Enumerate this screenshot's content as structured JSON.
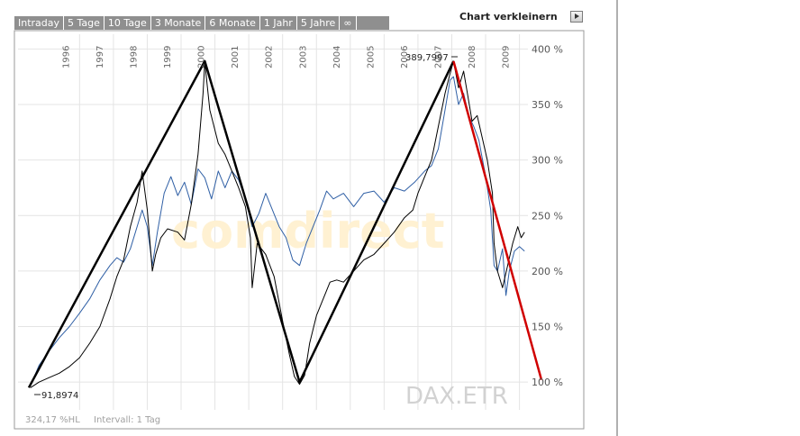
{
  "tabs": [
    "Intraday",
    "5 Tage",
    "10 Tage",
    "3 Monate",
    "6 Monate",
    "1 Jahr",
    "5 Jahre",
    "∞"
  ],
  "shrink_label": "Chart verkleinern",
  "watermark": "DAX.ETR",
  "logo_text": "comdirect",
  "stats": {
    "performance": "324,17 %HL",
    "interval": "Intervall: 1 Tag"
  },
  "colors": {
    "dax_line": "#000000",
    "comparison_line": "#2f5fa5",
    "trend_up": "#000000",
    "trend_down": "#d00000",
    "grid": "#e4e4e4"
  },
  "chart_data": {
    "type": "line",
    "title": "",
    "xlabel": "",
    "ylabel": "",
    "x_ticks": [
      "1996",
      "1997",
      "1998",
      "1999",
      "2000",
      "2001",
      "2002",
      "2003",
      "2004",
      "2005",
      "2006",
      "2007",
      "2008",
      "2009"
    ],
    "y_ticks": [
      "100 %",
      "150 %",
      "200 %",
      "250 %",
      "300 %",
      "350 %",
      "400 %"
    ],
    "xlim": [
      1995.0,
      2009.75
    ],
    "ylim": [
      75,
      410
    ],
    "annotations": {
      "min_label": "91,8974",
      "max_label": "389,7997"
    },
    "series": [
      {
        "color": "#000000",
        "points": [
          [
            1995.05,
            95
          ],
          [
            1995.3,
            100
          ],
          [
            1995.6,
            104
          ],
          [
            1995.9,
            108
          ],
          [
            1996.2,
            114
          ],
          [
            1996.5,
            122
          ],
          [
            1996.8,
            135
          ],
          [
            1997.1,
            150
          ],
          [
            1997.4,
            175
          ],
          [
            1997.6,
            195
          ],
          [
            1997.8,
            210
          ],
          [
            1998.0,
            240
          ],
          [
            1998.2,
            262
          ],
          [
            1998.35,
            290
          ],
          [
            1998.5,
            255
          ],
          [
            1998.65,
            200
          ],
          [
            1998.75,
            215
          ],
          [
            1998.9,
            230
          ],
          [
            1999.1,
            238
          ],
          [
            1999.4,
            235
          ],
          [
            1999.6,
            228
          ],
          [
            1999.8,
            260
          ],
          [
            2000.0,
            305
          ],
          [
            2000.15,
            360
          ],
          [
            2000.2,
            388
          ],
          [
            2000.35,
            345
          ],
          [
            2000.6,
            315
          ],
          [
            2000.8,
            305
          ],
          [
            2001.0,
            290
          ],
          [
            2001.2,
            275
          ],
          [
            2001.4,
            258
          ],
          [
            2001.55,
            230
          ],
          [
            2001.6,
            185
          ],
          [
            2001.75,
            225
          ],
          [
            2002.0,
            215
          ],
          [
            2002.25,
            195
          ],
          [
            2002.5,
            155
          ],
          [
            2002.7,
            125
          ],
          [
            2002.85,
            105
          ],
          [
            2003.0,
            98
          ],
          [
            2003.15,
            106
          ],
          [
            2003.3,
            135
          ],
          [
            2003.5,
            160
          ],
          [
            2003.7,
            175
          ],
          [
            2003.9,
            190
          ],
          [
            2004.1,
            192
          ],
          [
            2004.3,
            190
          ],
          [
            2004.6,
            200
          ],
          [
            2004.9,
            210
          ],
          [
            2005.2,
            215
          ],
          [
            2005.5,
            225
          ],
          [
            2005.8,
            235
          ],
          [
            2006.1,
            248
          ],
          [
            2006.35,
            255
          ],
          [
            2006.5,
            270
          ],
          [
            2006.7,
            285
          ],
          [
            2006.9,
            300
          ],
          [
            2007.1,
            330
          ],
          [
            2007.3,
            360
          ],
          [
            2007.45,
            378
          ],
          [
            2007.55,
            389
          ],
          [
            2007.7,
            365
          ],
          [
            2007.85,
            380
          ],
          [
            2007.95,
            362
          ],
          [
            2008.1,
            335
          ],
          [
            2008.25,
            340
          ],
          [
            2008.4,
            320
          ],
          [
            2008.55,
            300
          ],
          [
            2008.7,
            270
          ],
          [
            2008.75,
            225
          ],
          [
            2008.85,
            200
          ],
          [
            2009.0,
            185
          ],
          [
            2009.15,
            205
          ],
          [
            2009.3,
            225
          ],
          [
            2009.45,
            240
          ],
          [
            2009.55,
            230
          ],
          [
            2009.65,
            235
          ]
        ]
      },
      {
        "color": "#2f5fa5",
        "points": [
          [
            1995.05,
            97
          ],
          [
            1995.3,
            115
          ],
          [
            1995.6,
            128
          ],
          [
            1995.9,
            140
          ],
          [
            1996.2,
            150
          ],
          [
            1996.5,
            162
          ],
          [
            1996.8,
            175
          ],
          [
            1997.1,
            192
          ],
          [
            1997.4,
            205
          ],
          [
            1997.6,
            212
          ],
          [
            1997.8,
            208
          ],
          [
            1998.0,
            220
          ],
          [
            1998.2,
            240
          ],
          [
            1998.35,
            255
          ],
          [
            1998.5,
            240
          ],
          [
            1998.65,
            205
          ],
          [
            1998.8,
            235
          ],
          [
            1999.0,
            270
          ],
          [
            1999.2,
            285
          ],
          [
            1999.4,
            268
          ],
          [
            1999.6,
            280
          ],
          [
            1999.8,
            260
          ],
          [
            2000.0,
            292
          ],
          [
            2000.2,
            284
          ],
          [
            2000.4,
            265
          ],
          [
            2000.6,
            290
          ],
          [
            2000.8,
            275
          ],
          [
            2001.0,
            290
          ],
          [
            2001.2,
            282
          ],
          [
            2001.4,
            265
          ],
          [
            2001.6,
            240
          ],
          [
            2001.8,
            252
          ],
          [
            2002.0,
            270
          ],
          [
            2002.2,
            255
          ],
          [
            2002.4,
            240
          ],
          [
            2002.6,
            230
          ],
          [
            2002.8,
            210
          ],
          [
            2003.0,
            205
          ],
          [
            2003.2,
            225
          ],
          [
            2003.4,
            240
          ],
          [
            2003.6,
            255
          ],
          [
            2003.8,
            272
          ],
          [
            2004.0,
            265
          ],
          [
            2004.3,
            270
          ],
          [
            2004.6,
            258
          ],
          [
            2004.9,
            270
          ],
          [
            2005.2,
            272
          ],
          [
            2005.5,
            262
          ],
          [
            2005.8,
            275
          ],
          [
            2006.1,
            272
          ],
          [
            2006.4,
            280
          ],
          [
            2006.7,
            290
          ],
          [
            2006.9,
            295
          ],
          [
            2007.1,
            310
          ],
          [
            2007.3,
            345
          ],
          [
            2007.45,
            372
          ],
          [
            2007.55,
            375
          ],
          [
            2007.7,
            350
          ],
          [
            2007.85,
            360
          ],
          [
            2008.0,
            340
          ],
          [
            2008.15,
            330
          ],
          [
            2008.3,
            318
          ],
          [
            2008.5,
            285
          ],
          [
            2008.65,
            255
          ],
          [
            2008.75,
            205
          ],
          [
            2008.85,
            200
          ],
          [
            2009.0,
            220
          ],
          [
            2009.1,
            178
          ],
          [
            2009.2,
            200
          ],
          [
            2009.35,
            218
          ],
          [
            2009.5,
            222
          ],
          [
            2009.65,
            218
          ]
        ]
      }
    ],
    "trend_lines": [
      {
        "color": "#000000",
        "points": [
          [
            1995.0,
            95
          ],
          [
            2000.2,
            389
          ],
          [
            2003.0,
            100
          ],
          [
            2007.55,
            389
          ]
        ]
      },
      {
        "color": "#d00000",
        "points": [
          [
            2007.55,
            389
          ],
          [
            2010.15,
            102
          ]
        ]
      }
    ]
  }
}
